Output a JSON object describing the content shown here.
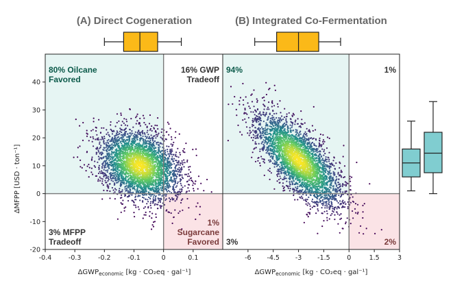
{
  "chart_data": [
    {
      "type": "scatter",
      "title": "(A) Direct Cogeneration",
      "xlabel": "ΔGWP",
      "xlabel_sub": "economic",
      "xlabel_unit": " [kg · CO₂eq · gal⁻¹]",
      "ylabel": "ΔMFPP [USD · ton⁻¹]",
      "xlim": [
        -0.4,
        0.2
      ],
      "ylim": [
        -20,
        50
      ],
      "xticks": [
        -0.4,
        -0.3,
        -0.2,
        -0.1,
        0,
        0.1
      ],
      "xtick_labels": [
        "-0.4",
        "-0.3",
        "-0.2",
        "-0.1",
        "0",
        "0.1"
      ],
      "yticks": [
        -20,
        -10,
        0,
        10,
        20,
        30,
        40
      ],
      "ytick_labels": [
        "-20",
        "-10",
        "0",
        "10",
        "20",
        "30",
        "40"
      ],
      "cloud": {
        "center_x": -0.08,
        "center_y": 10,
        "sd_x": 0.07,
        "sd_y": 6.5,
        "correlation": -0.3,
        "points": 3500
      },
      "regions": [
        {
          "name": "oilcane-favored",
          "quadrant": "top-left",
          "color": "#e6f5f3",
          "text": "80% Oilcane\nFavored",
          "text_color": "#0c5a4a"
        },
        {
          "name": "gwp-tradeoff",
          "quadrant": "top-right",
          "text": "16% GWP\nTradeoff",
          "text_color": "#333333"
        },
        {
          "name": "mfpp-tradeoff",
          "quadrant": "bottom-left",
          "text": "3% MFPP\nTradeoff",
          "text_color": "#333333"
        },
        {
          "name": "sugarcane-favored",
          "quadrant": "bottom-right",
          "color": "#fbe3e6",
          "text": "1%\nSugarcane\nFavored",
          "text_color": "#7a3a3a"
        }
      ],
      "boxplot_x": {
        "whisker_low": -0.2,
        "q1": -0.135,
        "median": -0.08,
        "q3": -0.02,
        "whisker_high": 0.06,
        "color": "#fbb918"
      }
    },
    {
      "type": "scatter",
      "title": "(B) Integrated Co-Fermentation",
      "xlabel": "ΔGWP",
      "xlabel_sub": "economic",
      "xlabel_unit": " [kg · CO₂eq · gal⁻¹]",
      "xlim": [
        -7.5,
        3
      ],
      "ylim": [
        -20,
        50
      ],
      "xticks": [
        -6,
        -4.5,
        -3,
        -1.5,
        0,
        1.5,
        3
      ],
      "xtick_labels": [
        "-6",
        "-4.5",
        "-3",
        "-1.5",
        "0",
        "1.5",
        "3"
      ],
      "cloud": {
        "center_x": -3.0,
        "center_y": 12,
        "sd_x": 1.3,
        "sd_y": 8.5,
        "correlation": -0.72,
        "points": 3500
      },
      "regions": [
        {
          "name": "oilcane-favored",
          "quadrant": "top-left",
          "color": "#e6f5f3",
          "text": "94%",
          "text_color": "#0c5a4a"
        },
        {
          "name": "gwp-tradeoff",
          "quadrant": "top-right",
          "text": "1%",
          "text_color": "#333333"
        },
        {
          "name": "mfpp-tradeoff",
          "quadrant": "bottom-left",
          "text": "3%",
          "text_color": "#333333"
        },
        {
          "name": "sugarcane-favored",
          "quadrant": "bottom-right",
          "color": "#fbe3e6",
          "text": "2%",
          "text_color": "#7a3a3a"
        }
      ],
      "boxplot_x": {
        "whisker_low": -5.6,
        "q1": -4.3,
        "median": -3.0,
        "q3": -1.8,
        "whisker_high": -0.5,
        "color": "#fbb918"
      }
    },
    {
      "type": "boxplot",
      "ylim": [
        -20,
        50
      ],
      "color": "#80cdd0",
      "boxes": [
        {
          "whisker_low": 1,
          "q1": 6,
          "median": 11,
          "q3": 16,
          "whisker_high": 26
        },
        {
          "whisker_low": 0,
          "q1": 7.5,
          "median": 14.5,
          "q3": 22,
          "whisker_high": 33
        }
      ]
    }
  ]
}
